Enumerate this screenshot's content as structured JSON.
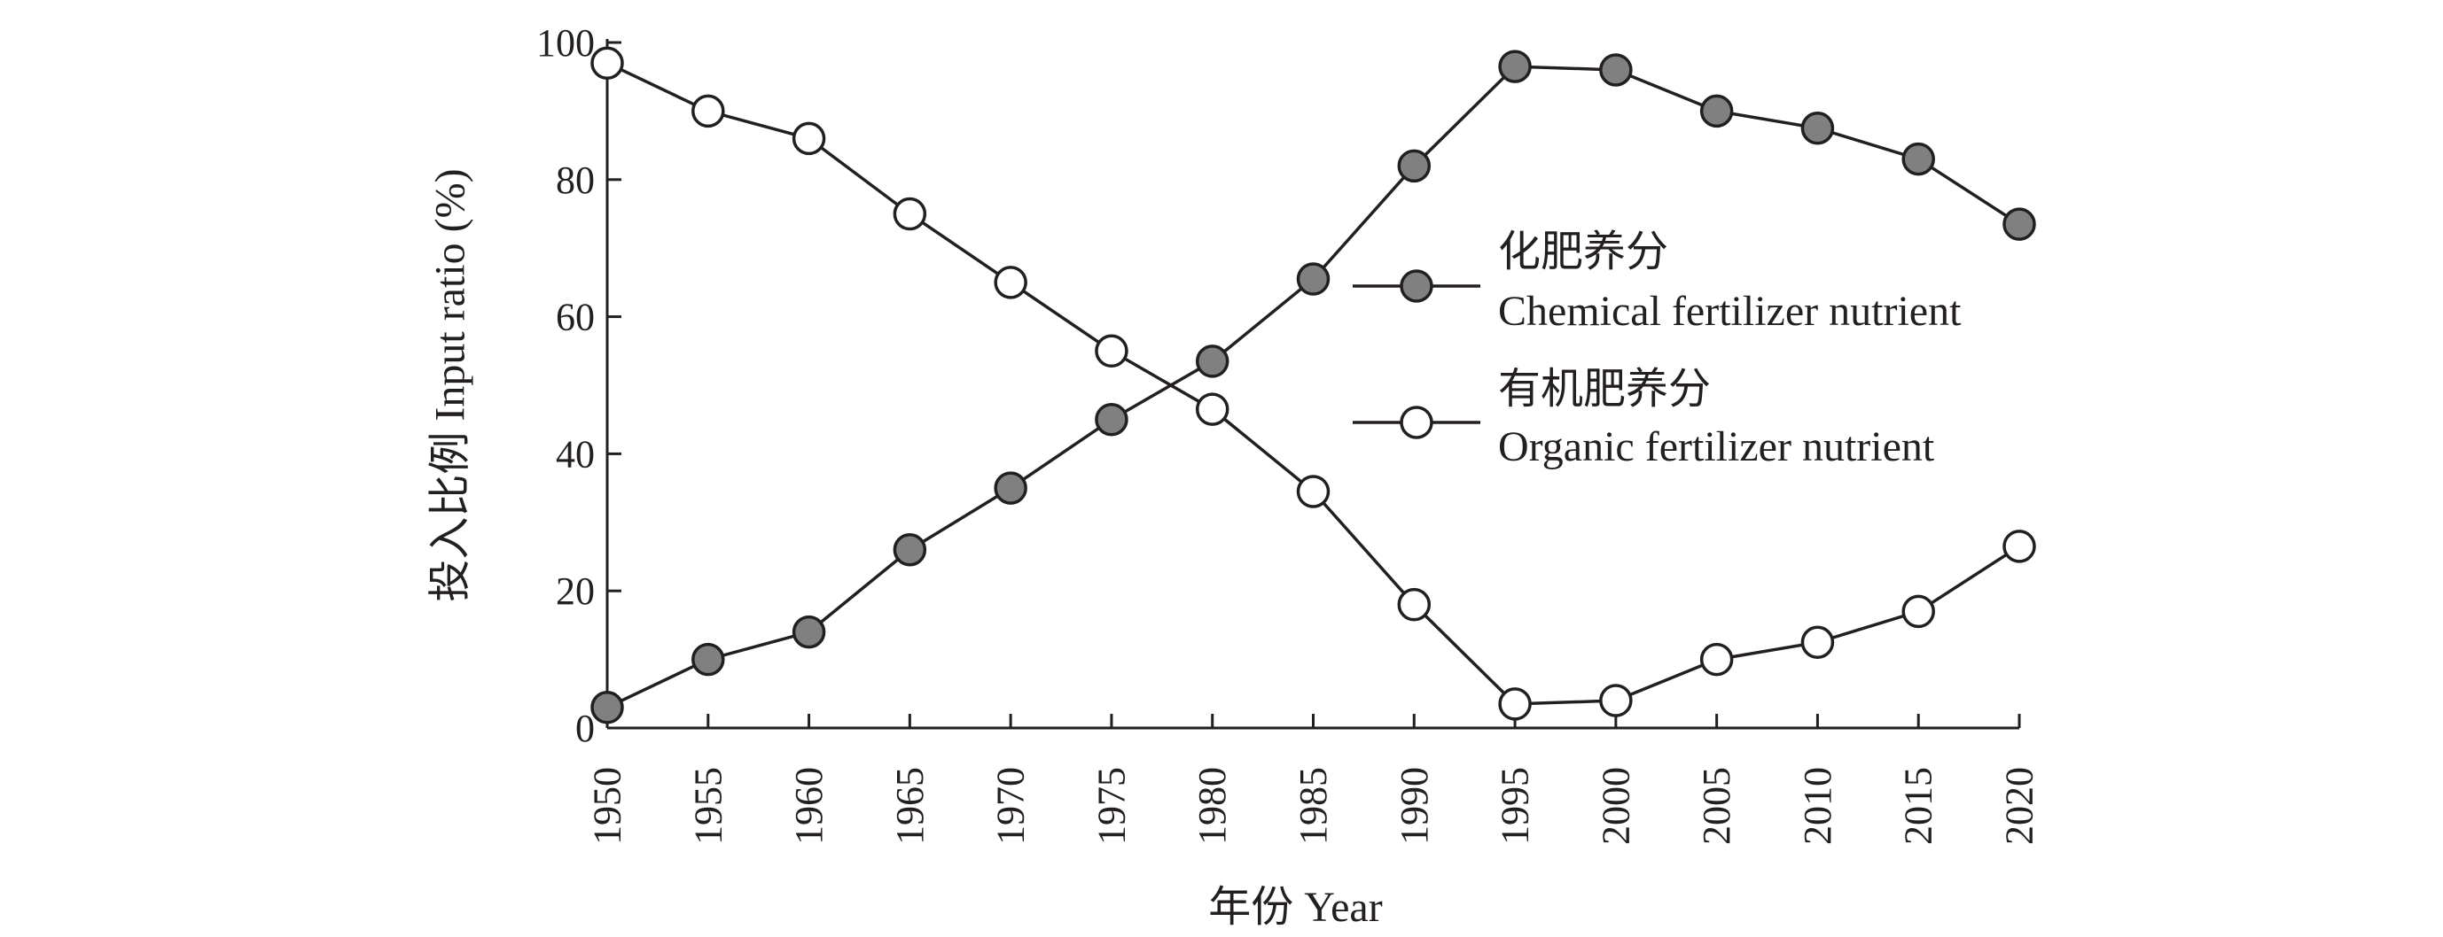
{
  "chart_data": {
    "type": "line",
    "x": [
      1950,
      1955,
      1960,
      1965,
      1970,
      1975,
      1980,
      1985,
      1990,
      1995,
      2000,
      2005,
      2010,
      2015,
      2020
    ],
    "x_tick_labels": [
      "1950",
      "1955",
      "1960",
      "1965",
      "1970",
      "1975",
      "1980",
      "1985",
      "1990",
      "1995",
      "2000",
      "2005",
      "2010",
      "2015",
      "2020"
    ],
    "y_tick_labels": [
      "0",
      "20",
      "40",
      "60",
      "80",
      "100"
    ],
    "xlabel": "年份 Year",
    "ylabel": "投入比例 Input ratio (%)",
    "xlim": [
      1950,
      2020
    ],
    "ylim": [
      0,
      100
    ],
    "grid": false,
    "legend_position": "right",
    "series": [
      {
        "name_cn": "化肥养分",
        "name_en": "Chemical fertilizer nutrient",
        "marker_fill": "#808080",
        "values": [
          3,
          10,
          14,
          26,
          35,
          45,
          53.5,
          65.5,
          82,
          96.5,
          96,
          90,
          87.5,
          83,
          73.5
        ]
      },
      {
        "name_cn": "有机肥养分",
        "name_en": "Organic fertilizer nutrient",
        "marker_fill": "#ffffff",
        "values": [
          97,
          90,
          86,
          75,
          65,
          55,
          46.5,
          34.5,
          18,
          3.5,
          4,
          10,
          12.5,
          17,
          26.5
        ]
      }
    ]
  }
}
